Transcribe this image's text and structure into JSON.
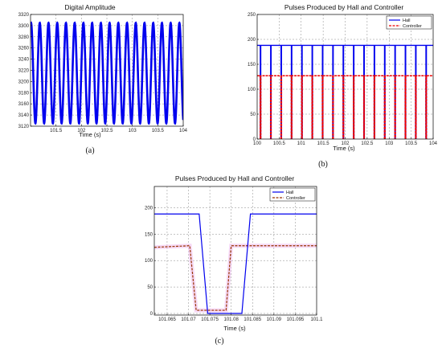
{
  "chart_data": [
    {
      "panel": "(a)",
      "type": "line",
      "title": "Digital Amplitude",
      "xlabel": "Time (s)",
      "ylabel": "",
      "xlim": [
        101.0,
        104.0
      ],
      "ylim": [
        3120,
        3320
      ],
      "xticks": [
        101.5,
        102,
        102.5,
        103,
        103.5,
        104
      ],
      "xtick_labels": [
        "101.5",
        "102",
        "102.5",
        "103",
        "103.5",
        "104"
      ],
      "yticks": [
        3120,
        3140,
        3160,
        3180,
        3200,
        3220,
        3240,
        3260,
        3280,
        3300,
        3320
      ],
      "ytick_labels": [
        "3120",
        "3140",
        "3160",
        "3180",
        "3200",
        "3220",
        "3240",
        "3260",
        "3280",
        "3300",
        "3320"
      ],
      "grid": true,
      "series": [
        {
          "color": "#0000ee",
          "shape": "sinusoid",
          "min": 3125,
          "max": 3305,
          "cycles": 17.5
        }
      ]
    },
    {
      "panel": "(b)",
      "type": "line",
      "title": "Pulses Produced by Hall and  Controller",
      "xlabel": "Time (s)",
      "ylabel": "",
      "xlim": [
        100,
        104
      ],
      "ylim": [
        0,
        250
      ],
      "xticks": [
        100,
        100.5,
        101,
        101.5,
        102,
        102.5,
        103,
        103.5,
        104
      ],
      "xtick_labels": [
        "100",
        "100.5",
        "101",
        "101.5",
        "102",
        "102.5",
        "103",
        "103.5",
        "104"
      ],
      "yticks": [
        0,
        50,
        100,
        150,
        200,
        250
      ],
      "ytick_labels": [
        "0",
        "50",
        "100",
        "150",
        "200",
        "250"
      ],
      "grid": true,
      "legend": "top-right",
      "series": [
        {
          "name": "Hall",
          "color": "#0000ee",
          "style": "solid",
          "high": 188,
          "low": 0,
          "pulses": 17
        },
        {
          "name": "Controller",
          "color": "#ee0000",
          "style": "dashed",
          "high": 127,
          "low": 0,
          "pulses": 17
        }
      ]
    },
    {
      "panel": "(c)",
      "type": "line",
      "title": "Pulses Produced by Hall and  Controller",
      "xlabel": "Time (s)",
      "ylabel": "",
      "xlim": [
        101.062,
        101.1
      ],
      "ylim": [
        -3,
        240
      ],
      "xticks": [
        101.065,
        101.07,
        101.075,
        101.08,
        101.085,
        101.09,
        101.095,
        101.1
      ],
      "xtick_labels": [
        "101.065",
        "101.07",
        "101.075",
        "101.08",
        "101.085",
        "101.09",
        "101.095",
        "101.1"
      ],
      "yticks": [
        0,
        50,
        100,
        150,
        200
      ],
      "ytick_labels": [
        "0",
        "50",
        "100",
        "150",
        "200"
      ],
      "grid": true,
      "legend": "top-right",
      "series": [
        {
          "name": "Hall",
          "color": "#0000ee",
          "style": "solid",
          "x": [
            101.062,
            101.0725,
            101.0745,
            101.0825,
            101.0845,
            101.1
          ],
          "y": [
            188,
            188,
            0,
            0,
            188,
            188
          ]
        },
        {
          "name": "Controller",
          "color": "#993300",
          "style": "dashed",
          "x": [
            101.062,
            101.0703,
            101.0718,
            101.0788,
            101.08,
            101.1
          ],
          "y": [
            125,
            128,
            6,
            6,
            128,
            128
          ]
        }
      ]
    }
  ]
}
